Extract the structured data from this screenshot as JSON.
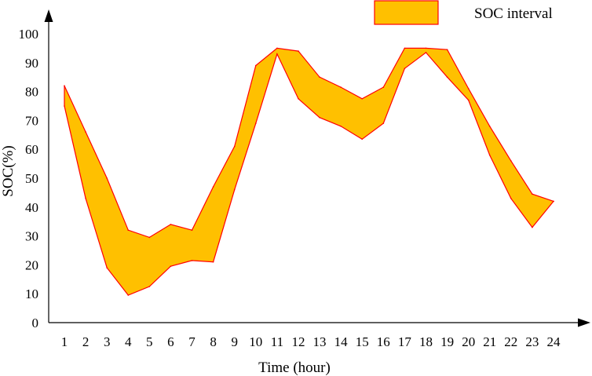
{
  "chart_data": {
    "type": "area",
    "title": "",
    "xlabel": "Time (hour)",
    "ylabel": "SOC(%)",
    "x": [
      "1",
      "2",
      "3",
      "4",
      "5",
      "6",
      "7",
      "8",
      "9",
      "10",
      "11",
      "12",
      "13",
      "14",
      "15",
      "16",
      "17",
      "18",
      "19",
      "20",
      "21",
      "22",
      "23",
      "24"
    ],
    "ylim": [
      0,
      100
    ],
    "yticks": [
      "0",
      "10",
      "20",
      "30",
      "40",
      "50",
      "60",
      "70",
      "80",
      "90",
      "100"
    ],
    "grid": false,
    "legend_position": "top-right",
    "series": [
      {
        "name": "SOC interval",
        "upper": [
          82,
          66,
          50,
          32,
          29.5,
          34,
          32,
          47,
          61,
          89,
          95,
          94,
          85,
          81.5,
          77.5,
          81.5,
          95,
          95,
          94.5,
          81,
          68,
          56,
          44.5,
          42
        ],
        "lower": [
          75,
          43,
          19,
          9.5,
          12.5,
          19.5,
          21.5,
          21,
          46,
          69,
          93,
          77.5,
          71,
          68,
          63.5,
          69,
          88,
          93.5,
          85,
          77,
          58,
          43,
          33,
          42
        ],
        "fill": "#FFC000",
        "stroke": "#FF0000"
      }
    ]
  }
}
